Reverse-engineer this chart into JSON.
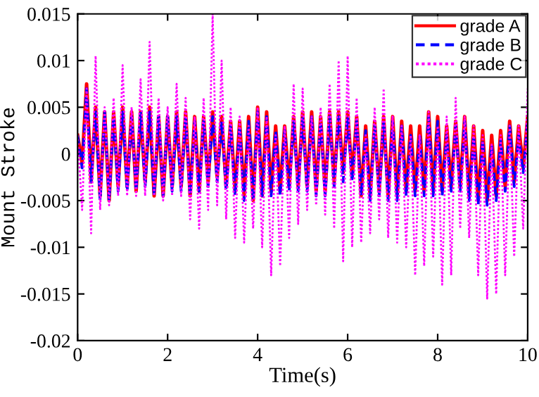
{
  "chart_data": {
    "type": "line",
    "xlabel": "Time(s)",
    "ylabel": "Mount Stroke",
    "x": [
      0,
      0.1,
      0.2,
      0.3,
      0.4,
      0.5,
      0.6,
      0.7,
      0.8,
      0.9,
      1,
      1.1,
      1.2,
      1.3,
      1.4,
      1.5,
      1.6,
      1.7,
      1.8,
      1.9,
      2,
      2.1,
      2.2,
      2.3,
      2.4,
      2.5,
      2.6,
      2.7,
      2.8,
      2.9,
      3,
      3.1,
      3.2,
      3.3,
      3.4,
      3.5,
      3.6,
      3.7,
      3.8,
      3.9,
      4,
      4.1,
      4.2,
      4.3,
      4.4,
      4.5,
      4.6,
      4.7,
      4.8,
      4.9,
      5,
      5.1,
      5.2,
      5.3,
      5.4,
      5.5,
      5.6,
      5.7,
      5.8,
      5.9,
      6,
      6.1,
      6.2,
      6.3,
      6.4,
      6.5,
      6.6,
      6.7,
      6.8,
      6.9,
      7,
      7.1,
      7.2,
      7.3,
      7.4,
      7.5,
      7.6,
      7.7,
      7.8,
      7.9,
      8,
      8.1,
      8.2,
      8.3,
      8.4,
      8.5,
      8.6,
      8.7,
      8.8,
      8.9,
      9,
      9.1,
      9.2,
      9.3,
      9.4,
      9.5,
      9.6,
      9.7,
      9.8,
      9.9,
      10
    ],
    "series": [
      {
        "name": "grade A",
        "color": "#ff0000",
        "line_style": "solid",
        "values": [
          0.002,
          -0.001,
          0.0075,
          -0.003,
          0.005,
          -0.0045,
          0.0045,
          -0.005,
          0.0045,
          -0.0035,
          0.005,
          -0.0035,
          0.0045,
          -0.004,
          0.0045,
          -0.003,
          0.005,
          -0.0045,
          0.004,
          -0.0045,
          0.004,
          -0.0035,
          0.0045,
          -0.0035,
          0.0045,
          -0.0045,
          0.004,
          -0.004,
          0.004,
          -0.003,
          0.0045,
          -0.0025,
          0.004,
          -0.0035,
          0.0035,
          -0.004,
          0.0035,
          -0.0045,
          0.004,
          -0.005,
          0.005,
          -0.0045,
          0.0045,
          -0.004,
          0.003,
          -0.004,
          0.003,
          -0.0035,
          0.004,
          -0.0035,
          0.0045,
          -0.0035,
          0.0045,
          -0.004,
          0.004,
          -0.004,
          0.0045,
          -0.003,
          0.0045,
          -0.002,
          0.0045,
          -0.0025,
          0.004,
          -0.0045,
          0.003,
          -0.0045,
          0.0035,
          -0.004,
          0.004,
          -0.0045,
          0.004,
          -0.0045,
          0.0035,
          -0.004,
          0.003,
          -0.004,
          0.003,
          -0.004,
          0.0045,
          -0.004,
          0.004,
          -0.004,
          0.003,
          -0.0035,
          0.0035,
          -0.0035,
          0.004,
          -0.0045,
          0.003,
          -0.005,
          0.0025,
          -0.005,
          0.002,
          -0.0045,
          0.0025,
          -0.0035,
          0.0035,
          -0.003,
          0.003,
          -0.0015,
          0.004
        ]
      },
      {
        "name": "grade B",
        "color": "#0000ff",
        "line_style": "dashed",
        "values": [
          0.002,
          -0.0015,
          0.007,
          -0.003,
          0.0045,
          -0.005,
          0.0045,
          -0.005,
          0.004,
          -0.004,
          0.0045,
          -0.004,
          0.004,
          -0.004,
          0.0045,
          -0.0035,
          0.0045,
          -0.0045,
          0.004,
          -0.0045,
          0.004,
          -0.004,
          0.004,
          -0.004,
          0.004,
          -0.0045,
          0.0035,
          -0.004,
          0.0035,
          -0.0035,
          0.004,
          -0.003,
          0.0035,
          -0.004,
          0.003,
          -0.0045,
          0.003,
          -0.005,
          0.0035,
          -0.005,
          0.0045,
          -0.0045,
          0.004,
          -0.0045,
          0.0025,
          -0.0045,
          0.0025,
          -0.004,
          0.0035,
          -0.004,
          0.004,
          -0.004,
          0.004,
          -0.0045,
          0.0035,
          -0.0045,
          0.004,
          -0.0035,
          0.004,
          -0.003,
          0.004,
          -0.003,
          0.0035,
          -0.0045,
          0.0025,
          -0.005,
          0.003,
          -0.0045,
          0.0035,
          -0.005,
          0.0035,
          -0.005,
          0.003,
          -0.0045,
          0.002,
          -0.0045,
          0.002,
          -0.0045,
          0.004,
          -0.0045,
          0.0035,
          -0.0045,
          0.002,
          -0.004,
          0.003,
          -0.004,
          0.0035,
          -0.005,
          0.002,
          -0.0055,
          0.0015,
          -0.0055,
          0.001,
          -0.005,
          0.0015,
          -0.004,
          0.003,
          -0.0035,
          0.002,
          -0.002,
          0.0035
        ]
      },
      {
        "name": "grade C",
        "color": "#ff00ff",
        "line_style": "dotted",
        "values": [
          0.002,
          -0.006,
          0.007,
          -0.0085,
          0.0105,
          -0.006,
          0.005,
          -0.0055,
          0.006,
          -0.0045,
          0.0095,
          -0.0045,
          0.005,
          -0.0045,
          0.008,
          -0.0045,
          0.012,
          -0.0045,
          0.006,
          -0.005,
          0.005,
          -0.0045,
          0.0075,
          -0.0045,
          0.006,
          -0.007,
          0.004,
          -0.008,
          0.006,
          -0.006,
          0.015,
          -0.0055,
          0.01,
          -0.007,
          0.005,
          -0.009,
          0.004,
          -0.0095,
          0.003,
          -0.008,
          0.005,
          -0.01,
          0.004,
          -0.013,
          0.002,
          -0.012,
          0.003,
          -0.009,
          0.0075,
          -0.0075,
          0.007,
          -0.006,
          0.004,
          -0.0055,
          0.005,
          -0.0065,
          0.0075,
          -0.008,
          0.01,
          -0.0115,
          0.0105,
          -0.01,
          0.006,
          -0.0095,
          0.002,
          -0.0085,
          0.005,
          -0.007,
          0.007,
          -0.009,
          0.004,
          -0.0095,
          0.003,
          -0.01,
          0.002,
          -0.013,
          0.002,
          -0.012,
          0.0045,
          -0.011,
          0.003,
          -0.014,
          0.004,
          -0.013,
          0.006,
          -0.008,
          0.004,
          -0.009,
          0.003,
          -0.013,
          0.002,
          -0.0155,
          0.001,
          -0.015,
          0.002,
          -0.013,
          0.003,
          -0.011,
          0.003,
          -0.008,
          0.007
        ]
      }
    ],
    "xlim": [
      0,
      10
    ],
    "xticks": [
      0,
      2,
      4,
      6,
      8,
      10
    ],
    "ylim": [
      -0.02,
      0.015
    ],
    "yticks": [
      {
        "value": -0.02,
        "label": "-0.02"
      },
      {
        "value": -0.015,
        "label": "-0.015"
      },
      {
        "value": -0.01,
        "label": "-0.01"
      },
      {
        "value": -0.005,
        "label": "-0.005"
      },
      0,
      {
        "value": 0.005,
        "label": "0.005"
      },
      {
        "value": 0.01,
        "label": "0.01"
      },
      {
        "value": 0.015,
        "label": "0.015"
      }
    ],
    "grid": false,
    "legend": "top right",
    "marker": "none"
  }
}
